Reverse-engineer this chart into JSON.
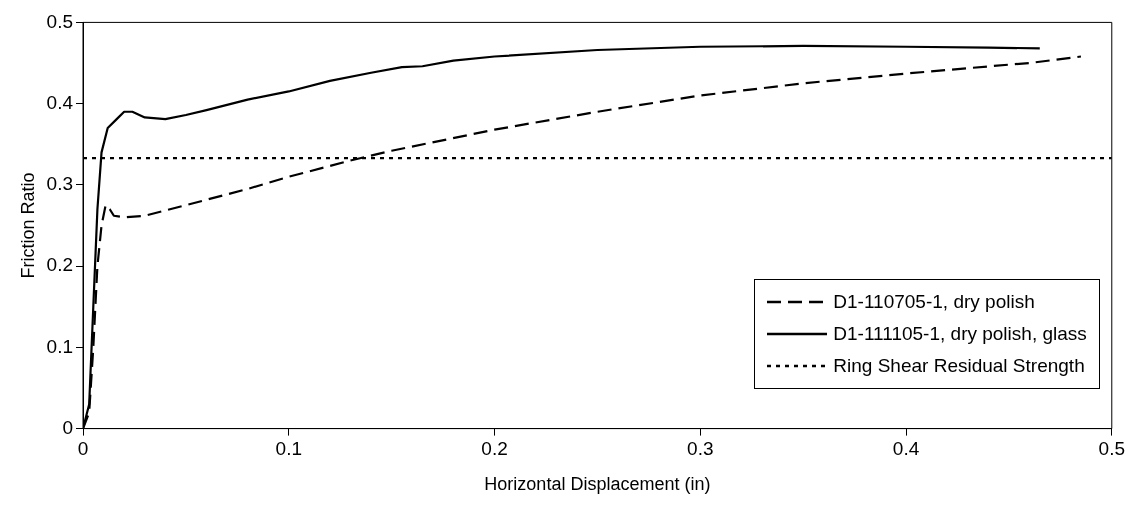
{
  "chart_data": {
    "type": "line",
    "xlabel": "Horizontal Displacement (in)",
    "ylabel": "Friction Ratio",
    "xlim": [
      0,
      0.5
    ],
    "xticks": [
      0,
      0.1,
      0.2,
      0.3,
      0.4,
      0.5
    ],
    "ylim": [
      0,
      0.5
    ],
    "yticks": [
      0,
      0.1,
      0.2,
      0.3,
      0.4,
      0.5
    ],
    "grid": false,
    "legend": "bottom right",
    "marker": "none",
    "series": [
      {
        "name": "D1-110705-1, dry polish",
        "color": "#000000",
        "line_style": "dashed",
        "x": [
          0,
          0.003,
          0.005,
          0.007,
          0.009,
          0.011,
          0.013,
          0.015,
          0.02,
          0.03,
          0.05,
          0.08,
          0.1,
          0.13,
          0.15,
          0.2,
          0.25,
          0.3,
          0.35,
          0.4,
          0.45,
          0.46,
          0.485
        ],
        "values": [
          0,
          0.02,
          0.1,
          0.2,
          0.25,
          0.275,
          0.27,
          0.262,
          0.26,
          0.262,
          0.275,
          0.295,
          0.31,
          0.33,
          0.342,
          0.368,
          0.39,
          0.41,
          0.425,
          0.437,
          0.448,
          0.45,
          0.458
        ]
      },
      {
        "name": "D1-111105-1, dry polish, glass",
        "color": "#000000",
        "line_style": "solid",
        "x": [
          0,
          0.003,
          0.005,
          0.007,
          0.009,
          0.012,
          0.016,
          0.02,
          0.024,
          0.03,
          0.04,
          0.05,
          0.06,
          0.08,
          0.1,
          0.12,
          0.14,
          0.155,
          0.165,
          0.18,
          0.2,
          0.25,
          0.3,
          0.35,
          0.4,
          0.44,
          0.465
        ],
        "values": [
          0,
          0.03,
          0.15,
          0.27,
          0.34,
          0.37,
          0.38,
          0.39,
          0.39,
          0.383,
          0.381,
          0.386,
          0.392,
          0.405,
          0.415,
          0.428,
          0.438,
          0.445,
          0.446,
          0.453,
          0.458,
          0.466,
          0.47,
          0.471,
          0.47,
          0.469,
          0.468
        ]
      }
    ],
    "ref_lines": [
      {
        "axis": "y",
        "value": 0.333,
        "label": "Ring Shear Residual Strength",
        "color": "#000000",
        "line_style": "dotted"
      }
    ]
  }
}
